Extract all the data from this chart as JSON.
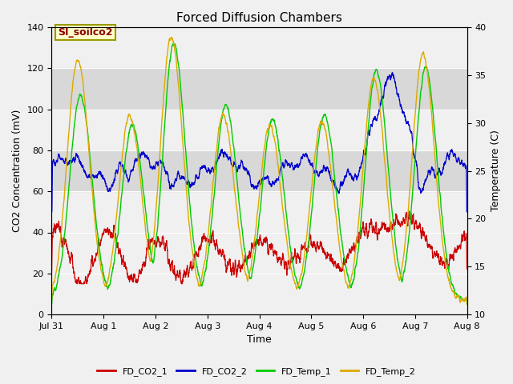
{
  "title": "Forced Diffusion Chambers",
  "xlabel": "Time",
  "ylabel_left": "CO2 Concentration (mV)",
  "ylabel_right": "Temperature (C)",
  "ylim_left": [
    0,
    140
  ],
  "ylim_right": [
    10,
    40
  ],
  "xlim": [
    0,
    8.0
  ],
  "xtick_positions": [
    0,
    1,
    2,
    3,
    4,
    5,
    6,
    7,
    8
  ],
  "xtick_labels": [
    "Jul 31",
    "Aug 1",
    "Aug 2",
    "Aug 3",
    "Aug 4",
    "Aug 5",
    "Aug 6",
    "Aug 7",
    "Aug 8"
  ],
  "annotation_text": "SI_soilco2",
  "legend_labels": [
    "FD_CO2_1",
    "FD_CO2_2",
    "FD_Temp_1",
    "FD_Temp_2"
  ],
  "colors": [
    "#cc0000",
    "#0000cc",
    "#00cc00",
    "#ddaa00"
  ],
  "band_ranges": [
    [
      60,
      80
    ],
    [
      100,
      120
    ]
  ],
  "band_color": "#d8d8d8",
  "background_color": "#f0f0f0",
  "figsize": [
    6.4,
    4.8
  ],
  "dpi": 100
}
